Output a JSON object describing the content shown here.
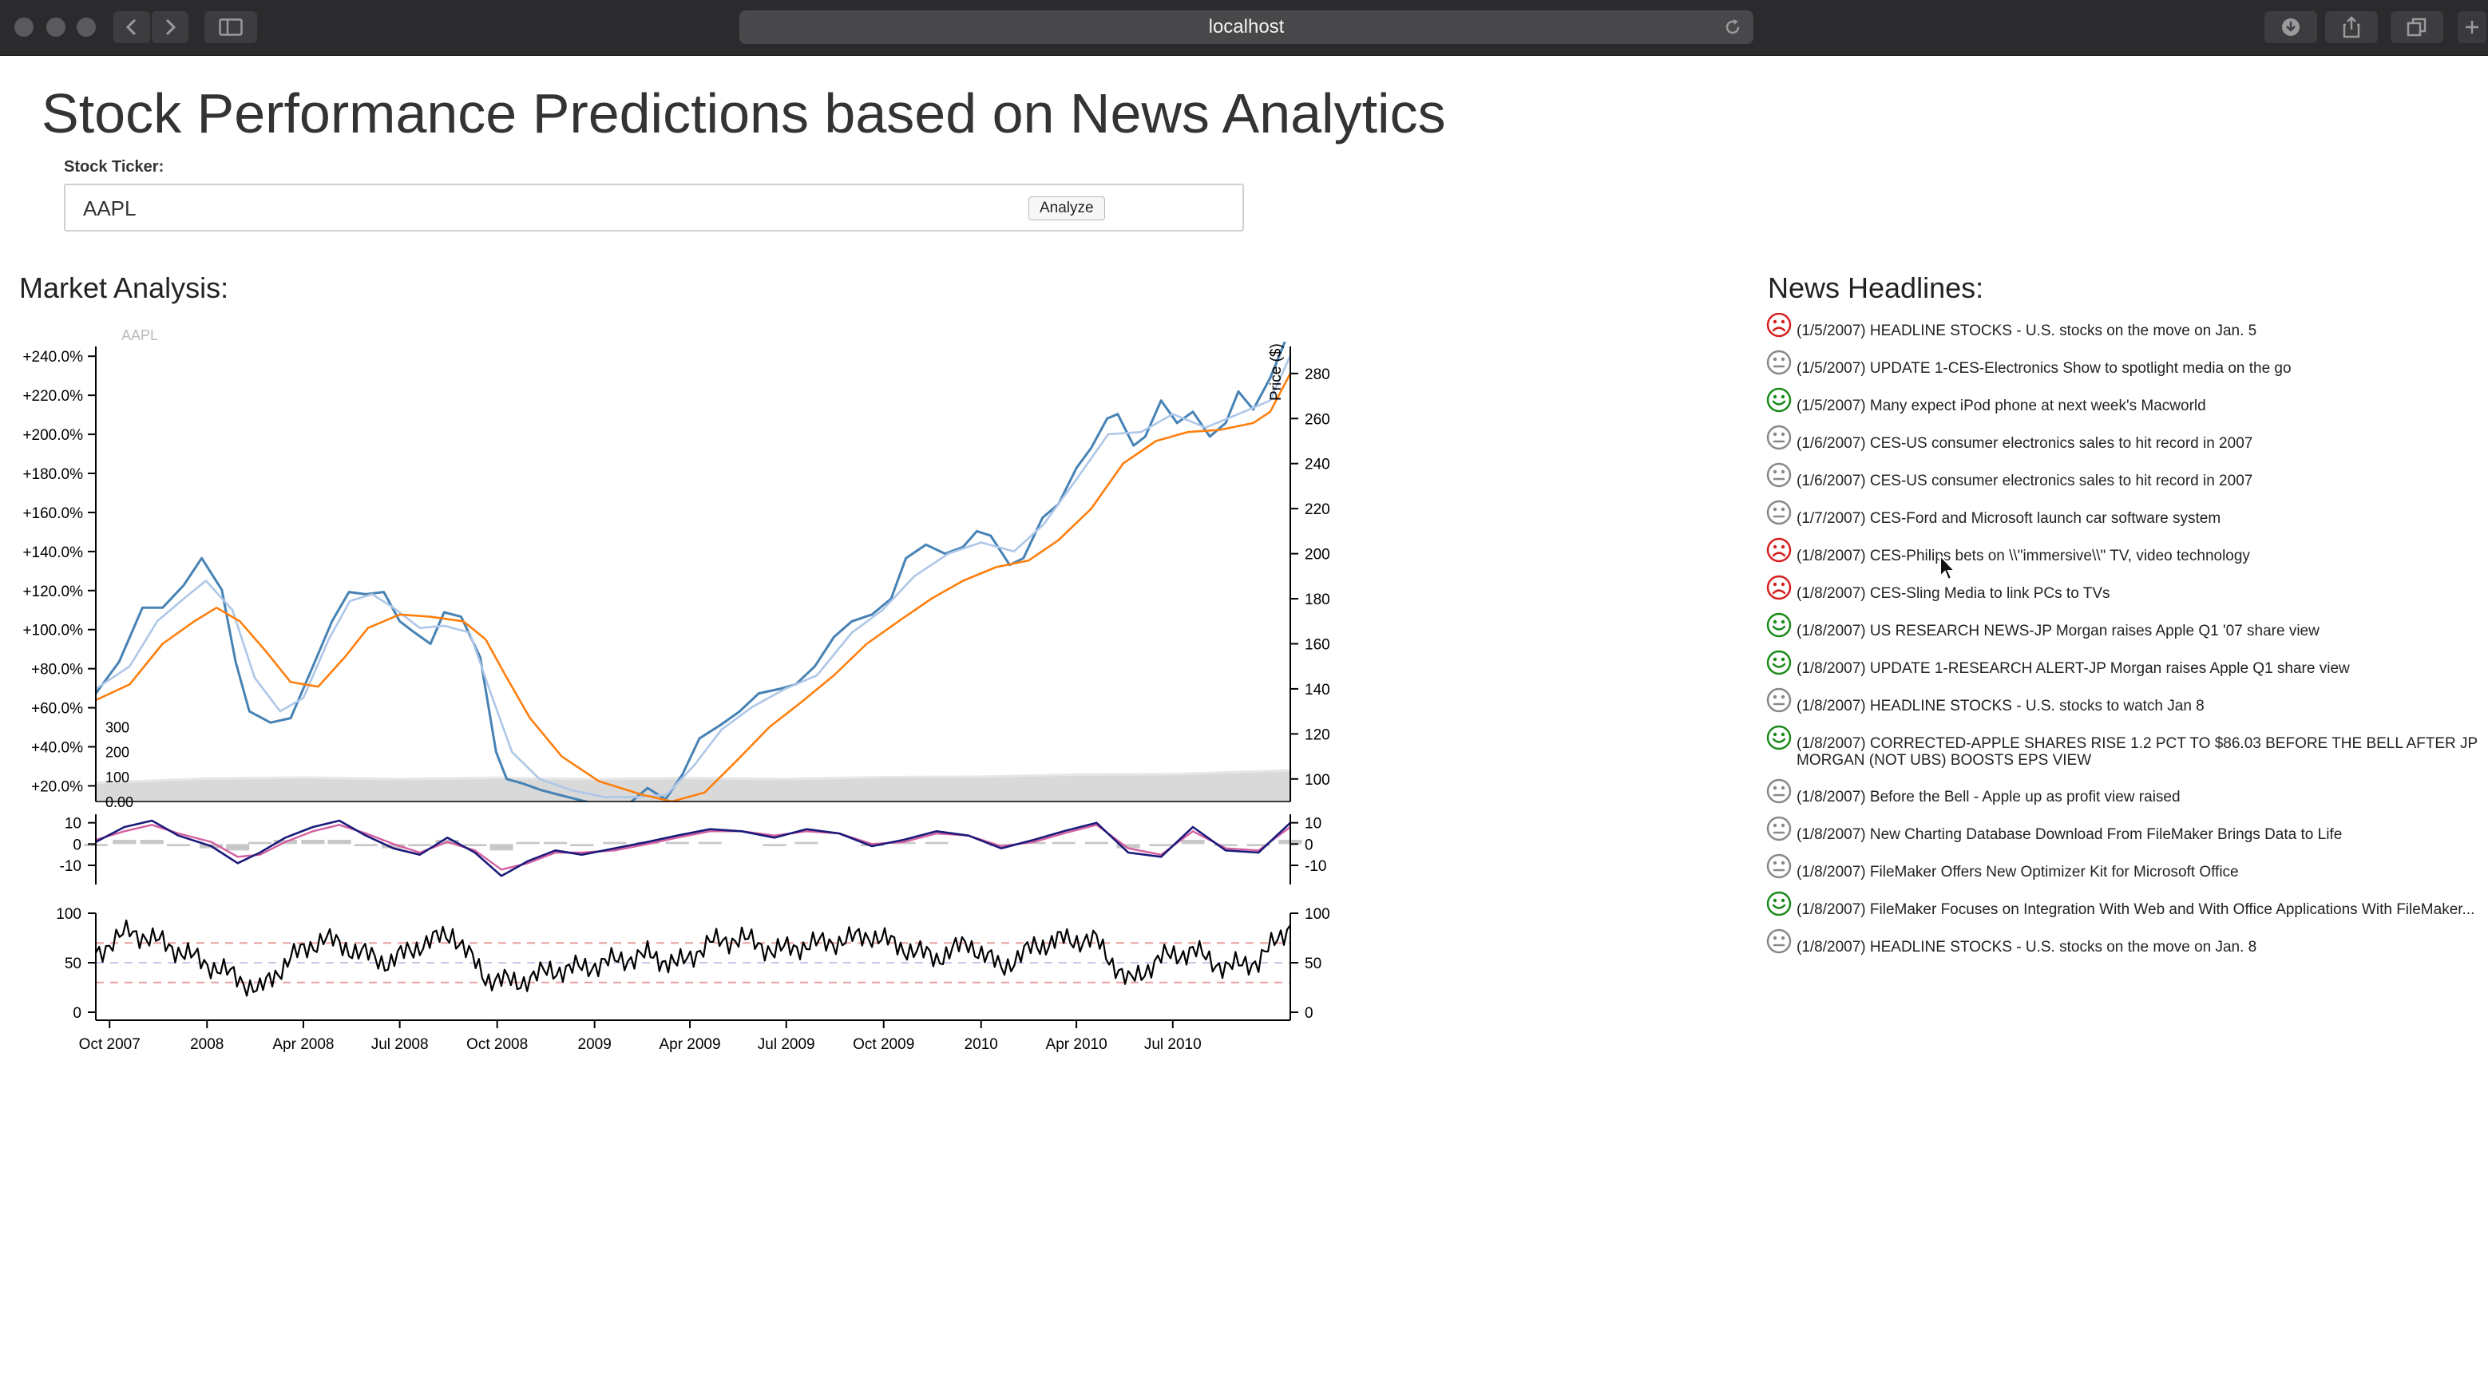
{
  "browser": {
    "address": "localhost"
  },
  "page": {
    "title": "Stock Performance Predictions based on News Analytics",
    "ticker_label": "Stock Ticker:",
    "ticker_value": "AAPL",
    "analyze_label": "Analyze",
    "market_title": "Market Analysis:",
    "news_title": "News Headlines:"
  },
  "chart_data": {
    "type": "line",
    "symbol": "AAPL",
    "x_ticks": [
      "Oct 2007",
      "2008",
      "Apr 2008",
      "Jul 2008",
      "Oct 2008",
      "2009",
      "Apr 2009",
      "Jul 2009",
      "Oct 2009",
      "2010",
      "Apr 2010",
      "Jul 2010"
    ],
    "x_range": [
      "2007-09-18",
      "2010-10-20"
    ],
    "price_panel": {
      "ylabel": "Price ($)",
      "y_ticks": [
        100,
        120,
        140,
        160,
        180,
        200,
        220,
        240,
        260,
        280
      ],
      "ylim": [
        90,
        292
      ],
      "pct_ticks": [
        "+20.0%",
        "+40.0%",
        "+60.0%",
        "+80.0%",
        "+100.0%",
        "+120.0%",
        "+140.0%",
        "+160.0%",
        "+180.0%",
        "+200.0%",
        "+220.0%",
        "+240.0%"
      ],
      "pct_lim": [
        12,
        245
      ],
      "series": [
        {
          "role": "price",
          "color": "#4682b4",
          "dates": [
            "2007-09-18",
            "2007-10-10",
            "2007-11-01",
            "2007-11-20",
            "2007-12-10",
            "2007-12-27",
            "2008-01-15",
            "2008-01-28",
            "2008-02-10",
            "2008-03-01",
            "2008-03-20",
            "2008-04-10",
            "2008-04-28",
            "2008-05-14",
            "2008-05-30",
            "2008-06-16",
            "2008-07-01",
            "2008-07-15",
            "2008-07-30",
            "2008-08-12",
            "2008-08-28",
            "2008-09-15",
            "2008-09-30",
            "2008-10-10",
            "2008-10-25",
            "2008-11-12",
            "2008-11-28",
            "2008-12-15",
            "2009-01-01",
            "2009-01-20",
            "2009-02-05",
            "2009-02-20",
            "2009-03-09",
            "2009-03-25",
            "2009-04-10",
            "2009-04-30",
            "2009-05-18",
            "2009-06-05",
            "2009-06-25",
            "2009-07-10",
            "2009-07-28",
            "2009-08-15",
            "2009-09-01",
            "2009-09-20",
            "2009-10-08",
            "2009-10-22",
            "2009-11-10",
            "2009-11-28",
            "2009-12-15",
            "2009-12-28",
            "2010-01-10",
            "2010-01-28",
            "2010-02-10",
            "2010-02-28",
            "2010-03-15",
            "2010-04-01",
            "2010-04-15",
            "2010-04-30",
            "2010-05-10",
            "2010-05-25",
            "2010-06-05",
            "2010-06-20",
            "2010-07-05",
            "2010-07-20",
            "2010-08-05",
            "2010-08-20",
            "2010-09-01",
            "2010-09-15",
            "2010-10-01",
            "2010-10-20"
          ],
          "values": [
            138,
            152,
            176,
            176,
            186,
            198,
            184,
            152,
            130,
            125,
            127,
            150,
            170,
            183,
            182,
            183,
            170,
            165,
            160,
            174,
            172,
            154,
            112,
            100,
            98,
            95,
            93,
            91,
            89,
            87,
            90,
            96,
            91,
            102,
            118,
            124,
            130,
            138,
            140,
            142,
            150,
            163,
            170,
            173,
            180,
            198,
            204,
            200,
            203,
            210,
            208,
            195,
            198,
            216,
            222,
            238,
            247,
            260,
            262,
            248,
            252,
            268,
            258,
            263,
            252,
            258,
            272,
            264,
            278,
            300
          ]
        },
        {
          "role": "moving-average-short",
          "color": "#aec7e8",
          "dates": [
            "2007-09-18",
            "2007-10-20",
            "2007-11-15",
            "2007-12-10",
            "2007-12-31",
            "2008-01-25",
            "2008-02-15",
            "2008-03-10",
            "2008-04-01",
            "2008-04-25",
            "2008-05-15",
            "2008-06-05",
            "2008-06-25",
            "2008-07-20",
            "2008-08-12",
            "2008-09-05",
            "2008-09-25",
            "2008-10-15",
            "2008-11-10",
            "2008-12-10",
            "2009-01-10",
            "2009-02-10",
            "2009-03-10",
            "2009-04-05",
            "2009-05-01",
            "2009-05-30",
            "2009-06-30",
            "2009-07-30",
            "2009-09-01",
            "2009-09-30",
            "2009-10-30",
            "2009-12-01",
            "2010-01-01",
            "2010-02-01",
            "2010-03-01",
            "2010-04-01",
            "2010-05-01",
            "2010-06-01",
            "2010-07-01",
            "2010-08-01",
            "2010-09-01",
            "2010-10-01",
            "2010-10-20"
          ],
          "values": [
            140,
            150,
            170,
            180,
            188,
            175,
            145,
            130,
            136,
            162,
            179,
            182,
            176,
            167,
            168,
            165,
            138,
            112,
            100,
            95,
            92,
            92,
            93,
            106,
            122,
            132,
            140,
            146,
            165,
            175,
            190,
            200,
            205,
            201,
            213,
            233,
            253,
            254,
            262,
            256,
            262,
            268,
            288
          ]
        },
        {
          "role": "moving-average-long",
          "color": "#ff7f0e",
          "dates": [
            "2007-09-18",
            "2007-10-20",
            "2007-11-20",
            "2007-12-20",
            "2008-01-10",
            "2008-02-01",
            "2008-02-25",
            "2008-03-20",
            "2008-04-15",
            "2008-05-10",
            "2008-06-01",
            "2008-07-01",
            "2008-07-30",
            "2008-08-30",
            "2008-09-20",
            "2008-10-10",
            "2008-11-01",
            "2008-12-01",
            "2009-01-05",
            "2009-02-15",
            "2009-03-15",
            "2009-04-15",
            "2009-05-15",
            "2009-06-15",
            "2009-07-15",
            "2009-08-15",
            "2009-09-15",
            "2009-10-15",
            "2009-11-15",
            "2009-12-15",
            "2010-01-15",
            "2010-02-15",
            "2010-03-15",
            "2010-04-15",
            "2010-05-15",
            "2010-06-15",
            "2010-07-15",
            "2010-08-15",
            "2010-09-15",
            "2010-10-01",
            "2010-10-20"
          ],
          "values": [
            135,
            142,
            160,
            170,
            176,
            170,
            157,
            143,
            141,
            154,
            167,
            173,
            172,
            170,
            162,
            145,
            127,
            110,
            99,
            93,
            90,
            94,
            108,
            123,
            134,
            146,
            160,
            170,
            180,
            188,
            194,
            197,
            206,
            220,
            240,
            250,
            254,
            255,
            258,
            263,
            280
          ]
        }
      ]
    },
    "volume_panel": {
      "y_ticks": [
        "0.00",
        "100",
        "200",
        "300"
      ],
      "ylim": [
        0,
        350
      ],
      "fill_color": "#d9d9d9",
      "dates": [
        "2007-09-18",
        "2008-01-01",
        "2008-04-01",
        "2008-07-01",
        "2008-10-01",
        "2009-01-01",
        "2009-04-01",
        "2009-07-01",
        "2009-10-01",
        "2010-01-01",
        "2010-04-01",
        "2010-07-01",
        "2010-10-20"
      ],
      "values": [
        75,
        92,
        96,
        90,
        95,
        90,
        94,
        90,
        98,
        100,
        108,
        110,
        125
      ]
    },
    "macd_panel": {
      "y_ticks": [
        -10,
        0,
        10
      ],
      "ylim": [
        -16,
        14
      ],
      "dates": [
        "2007-09-18",
        "2007-10-15",
        "2007-11-10",
        "2007-12-05",
        "2008-01-05",
        "2008-01-30",
        "2008-02-20",
        "2008-03-15",
        "2008-04-10",
        "2008-05-05",
        "2008-05-30",
        "2008-06-25",
        "2008-07-20",
        "2008-08-15",
        "2008-09-10",
        "2008-10-05",
        "2008-10-30",
        "2008-11-25",
        "2008-12-20",
        "2009-01-20",
        "2009-02-20",
        "2009-03-20",
        "2009-04-20",
        "2009-05-20",
        "2009-06-20",
        "2009-07-20",
        "2009-08-20",
        "2009-09-20",
        "2009-10-20",
        "2009-11-20",
        "2009-12-20",
        "2010-01-20",
        "2010-02-20",
        "2010-03-20",
        "2010-04-20",
        "2010-05-20",
        "2010-06-20",
        "2010-07-20",
        "2010-08-20",
        "2010-09-20",
        "2010-10-20"
      ],
      "macd": [
        1,
        8,
        11,
        4,
        -1,
        -9,
        -4,
        3,
        8,
        11,
        4,
        -2,
        -5,
        3,
        -4,
        -15,
        -8,
        -3,
        -5,
        -2,
        1,
        4,
        7,
        6,
        3,
        7,
        5,
        -1,
        2,
        6,
        4,
        -2,
        2,
        6,
        10,
        -4,
        -6,
        8,
        -3,
        -4,
        10
      ],
      "signal": [
        2,
        6,
        9,
        5,
        1,
        -6,
        -5,
        1,
        6,
        9,
        5,
        0,
        -4,
        1,
        -3,
        -12,
        -9,
        -4,
        -4,
        -3,
        0,
        3,
        6,
        6,
        4,
        6,
        5,
        0,
        1,
        5,
        4,
        -1,
        1,
        5,
        9,
        -2,
        -5,
        6,
        -2,
        -3,
        8
      ],
      "histogram": [
        -1,
        2,
        2,
        -1,
        -2,
        -3,
        1,
        2,
        2,
        2,
        -1,
        -2,
        -1,
        2,
        -1,
        -3,
        1,
        1,
        -1,
        1,
        1,
        1,
        1,
        0,
        -1,
        1,
        0,
        -1,
        1,
        1,
        0,
        -1,
        1,
        1,
        1,
        -2,
        -1,
        2,
        -1,
        -1,
        2
      ],
      "macd_color": "#1a1a7a",
      "signal_color": "#d45fa0",
      "histogram_color": "#c8c8c8"
    },
    "rsi_panel": {
      "y_ticks": [
        0,
        50,
        100
      ],
      "ylim": [
        0,
        100
      ],
      "bands": [
        30,
        50,
        70
      ],
      "dates": [
        "2007-09-18",
        "2007-10-20",
        "2007-11-20",
        "2007-12-20",
        "2008-01-20",
        "2008-02-20",
        "2008-03-20",
        "2008-04-20",
        "2008-05-20",
        "2008-06-20",
        "2008-07-20",
        "2008-08-20",
        "2008-09-20",
        "2008-10-20",
        "2008-11-20",
        "2008-12-20",
        "2009-01-20",
        "2009-02-20",
        "2009-03-20",
        "2009-04-20",
        "2009-05-20",
        "2009-06-20",
        "2009-07-20",
        "2009-08-20",
        "2009-09-20",
        "2009-10-20",
        "2009-11-20",
        "2009-12-20",
        "2010-01-20",
        "2010-02-20",
        "2010-03-20",
        "2010-04-20",
        "2010-05-20",
        "2010-06-20",
        "2010-07-20",
        "2010-08-20",
        "2010-09-20",
        "2010-10-20"
      ],
      "values": [
        60,
        82,
        70,
        55,
        40,
        22,
        55,
        75,
        62,
        50,
        68,
        80,
        35,
        30,
        42,
        45,
        52,
        58,
        48,
        70,
        75,
        62,
        68,
        72,
        78,
        65,
        55,
        70,
        45,
        66,
        74,
        72,
        30,
        55,
        62,
        45,
        52,
        88
      ]
    }
  },
  "news": [
    {
      "sentiment": "negative",
      "text": "(1/5/2007) HEADLINE STOCKS - U.S. stocks on the move on Jan. 5"
    },
    {
      "sentiment": "neutral",
      "text": "(1/5/2007) UPDATE 1-CES-Electronics Show to spotlight media on the go"
    },
    {
      "sentiment": "positive",
      "text": "(1/5/2007) Many expect iPod phone at next week's Macworld"
    },
    {
      "sentiment": "neutral",
      "text": "(1/6/2007) CES-US consumer electronics sales to hit record in 2007"
    },
    {
      "sentiment": "neutral",
      "text": "(1/6/2007) CES-US consumer electronics sales to hit record in 2007"
    },
    {
      "sentiment": "neutral",
      "text": "(1/7/2007) CES-Ford and Microsoft launch car software system"
    },
    {
      "sentiment": "negative",
      "text": "(1/8/2007) CES-Philips bets on \\\\\"immersive\\\\\" TV, video technology"
    },
    {
      "sentiment": "negative",
      "text": "(1/8/2007) CES-Sling Media to link PCs to TVs"
    },
    {
      "sentiment": "positive",
      "text": "(1/8/2007) US RESEARCH NEWS-JP Morgan raises Apple Q1 '07 share view"
    },
    {
      "sentiment": "positive",
      "text": "(1/8/2007) UPDATE 1-RESEARCH ALERT-JP Morgan raises Apple Q1 share view"
    },
    {
      "sentiment": "neutral",
      "text": "(1/8/2007) HEADLINE STOCKS - U.S. stocks to watch Jan 8"
    },
    {
      "sentiment": "positive",
      "text": "(1/8/2007) CORRECTED-APPLE SHARES RISE 1.2 PCT TO $86.03 BEFORE THE BELL AFTER JP MORGAN (NOT UBS) BOOSTS EPS VIEW"
    },
    {
      "sentiment": "neutral",
      "text": "(1/8/2007) Before the Bell - Apple up as profit view raised"
    },
    {
      "sentiment": "neutral",
      "text": "(1/8/2007) New Charting Database Download From FileMaker Brings Data to Life"
    },
    {
      "sentiment": "neutral",
      "text": "(1/8/2007) FileMaker Offers New Optimizer Kit for Microsoft Office"
    },
    {
      "sentiment": "positive",
      "text": "(1/8/2007) FileMaker Focuses on Integration With Web and With Office Applications With FileMaker..."
    },
    {
      "sentiment": "neutral",
      "text": "(1/8/2007) HEADLINE STOCKS - U.S. stocks on the move on Jan. 8"
    }
  ],
  "colors": {
    "chrome_bg": "#2b2b2d",
    "positive": "#1a8a1a",
    "negative": "#d42020",
    "neutral": "#888888"
  }
}
